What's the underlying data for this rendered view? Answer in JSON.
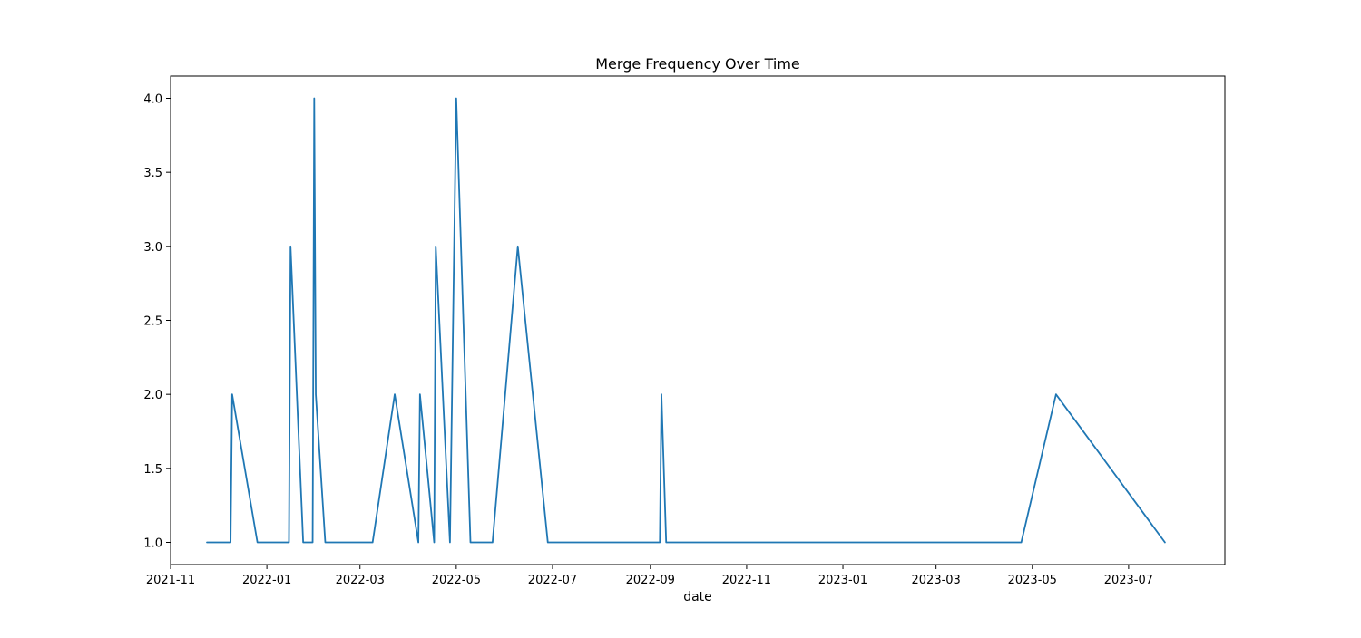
{
  "chart_data": {
    "type": "line",
    "title": "Merge Frequency Over Time",
    "xlabel": "date",
    "ylabel": "",
    "grid": false,
    "legend": "none",
    "x_type": "date",
    "xlim": [
      "2021-11-01",
      "2023-08-31"
    ],
    "ylim": [
      0.85,
      4.15
    ],
    "x_ticks": [
      {
        "value": "2021-11-01",
        "label": "2021-11"
      },
      {
        "value": "2022-01-01",
        "label": "2022-01"
      },
      {
        "value": "2022-03-01",
        "label": "2022-03"
      },
      {
        "value": "2022-05-01",
        "label": "2022-05"
      },
      {
        "value": "2022-07-01",
        "label": "2022-07"
      },
      {
        "value": "2022-09-01",
        "label": "2022-09"
      },
      {
        "value": "2022-11-01",
        "label": "2022-11"
      },
      {
        "value": "2023-01-01",
        "label": "2023-01"
      },
      {
        "value": "2023-03-01",
        "label": "2023-03"
      },
      {
        "value": "2023-05-01",
        "label": "2023-05"
      },
      {
        "value": "2023-07-01",
        "label": "2023-07"
      }
    ],
    "y_ticks": [
      {
        "value": 1.0,
        "label": "1.0"
      },
      {
        "value": 1.5,
        "label": "1.5"
      },
      {
        "value": 2.0,
        "label": "2.0"
      },
      {
        "value": 2.5,
        "label": "2.5"
      },
      {
        "value": 3.0,
        "label": "3.0"
      },
      {
        "value": 3.5,
        "label": "3.5"
      },
      {
        "value": 4.0,
        "label": "4.0"
      }
    ],
    "series": [
      {
        "color": "#1f77b4",
        "points": [
          {
            "x": "2021-11-24",
            "y": 1
          },
          {
            "x": "2021-12-09",
            "y": 1
          },
          {
            "x": "2021-12-10",
            "y": 2
          },
          {
            "x": "2021-12-26",
            "y": 1
          },
          {
            "x": "2022-01-15",
            "y": 1
          },
          {
            "x": "2022-01-16",
            "y": 3
          },
          {
            "x": "2022-01-24",
            "y": 1
          },
          {
            "x": "2022-01-30",
            "y": 1
          },
          {
            "x": "2022-01-31",
            "y": 4
          },
          {
            "x": "2022-02-01",
            "y": 2
          },
          {
            "x": "2022-02-07",
            "y": 1
          },
          {
            "x": "2022-03-09",
            "y": 1
          },
          {
            "x": "2022-03-23",
            "y": 2
          },
          {
            "x": "2022-04-07",
            "y": 1
          },
          {
            "x": "2022-04-08",
            "y": 2
          },
          {
            "x": "2022-04-17",
            "y": 1
          },
          {
            "x": "2022-04-18",
            "y": 3
          },
          {
            "x": "2022-04-27",
            "y": 1
          },
          {
            "x": "2022-04-29",
            "y": 2.5
          },
          {
            "x": "2022-05-01",
            "y": 4
          },
          {
            "x": "2022-05-10",
            "y": 1
          },
          {
            "x": "2022-05-24",
            "y": 1
          },
          {
            "x": "2022-06-09",
            "y": 3
          },
          {
            "x": "2022-06-28",
            "y": 1
          },
          {
            "x": "2022-09-07",
            "y": 1
          },
          {
            "x": "2022-09-08",
            "y": 2
          },
          {
            "x": "2022-09-11",
            "y": 1
          },
          {
            "x": "2023-04-24",
            "y": 1
          },
          {
            "x": "2023-05-16",
            "y": 2
          },
          {
            "x": "2023-07-24",
            "y": 1
          }
        ]
      }
    ]
  }
}
